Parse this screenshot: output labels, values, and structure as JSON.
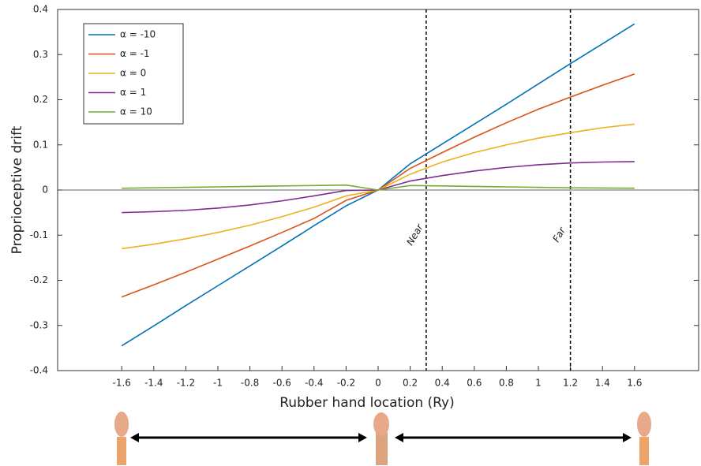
{
  "chart_data": {
    "type": "line",
    "x_label": "Rubber hand location (Ry)",
    "y_label": "Proprioceptive drift",
    "x": [
      -1.6,
      -1.4,
      -1.2,
      -1.0,
      -0.8,
      -0.6,
      -0.4,
      -0.2,
      0,
      0.2,
      0.4,
      0.6,
      0.8,
      1.0,
      1.2,
      1.4,
      1.6
    ],
    "series": [
      {
        "name": "α = -10",
        "color": "#0072bd",
        "values": [
          -0.345,
          -0.301,
          -0.256,
          -0.212,
          -0.168,
          -0.124,
          -0.079,
          -0.035,
          0,
          0.058,
          0.102,
          0.146,
          0.19,
          0.235,
          0.28,
          0.324,
          0.368
        ]
      },
      {
        "name": "α = -1",
        "color": "#d95319",
        "values": [
          -0.237,
          -0.21,
          -0.182,
          -0.153,
          -0.124,
          -0.094,
          -0.063,
          -0.023,
          0,
          0.048,
          0.083,
          0.117,
          0.149,
          0.179,
          0.206,
          0.232,
          0.257
        ]
      },
      {
        "name": "α = 0",
        "color": "#edb120",
        "values": [
          -0.13,
          -0.12,
          -0.108,
          -0.094,
          -0.078,
          -0.059,
          -0.038,
          -0.013,
          0,
          0.035,
          0.062,
          0.083,
          0.1,
          0.115,
          0.127,
          0.138,
          0.146
        ]
      },
      {
        "name": "α = 1",
        "color": "#7e2f8e",
        "values": [
          -0.05,
          -0.048,
          -0.045,
          -0.04,
          -0.033,
          -0.024,
          -0.013,
          -0.001,
          0,
          0.02,
          0.032,
          0.042,
          0.05,
          0.056,
          0.06,
          0.062,
          0.063
        ]
      },
      {
        "name": "α = 10",
        "color": "#77ac30",
        "values": [
          0.004,
          0.005,
          0.006,
          0.007,
          0.008,
          0.009,
          0.01,
          0.011,
          0,
          0.01,
          0.009,
          0.008,
          0.007,
          0.006,
          0.005,
          0.0045,
          0.004
        ]
      }
    ],
    "xlim": [
      -2,
      2
    ],
    "ylim": [
      -0.4,
      0.4
    ],
    "xticks": [
      -1.6,
      -1.4,
      -1.2,
      -1,
      -0.8,
      -0.6,
      -0.4,
      -0.2,
      0,
      0.2,
      0.4,
      0.6,
      0.8,
      1,
      1.2,
      1.4,
      1.6
    ],
    "yticks": [
      -0.4,
      -0.3,
      -0.2,
      -0.1,
      0,
      0.1,
      0.2,
      0.3,
      0.4
    ],
    "legend": "top-left",
    "annotations": [
      {
        "x": 0.3,
        "label": "Near"
      },
      {
        "x": 1.2,
        "label": "Far"
      }
    ]
  }
}
